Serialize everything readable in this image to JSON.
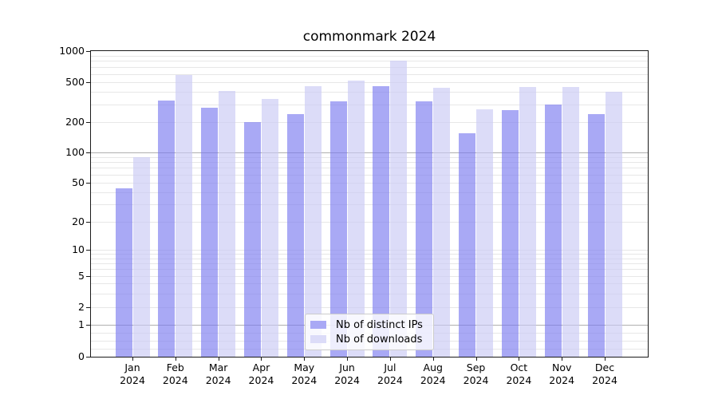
{
  "title": "commonmark 2024",
  "chart_data": {
    "type": "bar",
    "title": "commonmark 2024",
    "categories": [
      "Jan",
      "Feb",
      "Mar",
      "Apr",
      "May",
      "Jun",
      "Jul",
      "Aug",
      "Sep",
      "Oct",
      "Nov",
      "Dec"
    ],
    "year_label": "2024",
    "series": [
      {
        "name": "Nb of distinct IPs",
        "color": "#a9a9f5",
        "fill_rgba": "rgba(123,123,240,0.65)",
        "values": [
          44,
          330,
          280,
          200,
          240,
          320,
          460,
          320,
          155,
          265,
          300,
          240
        ]
      },
      {
        "name": "Nb of downloads",
        "color": "#dcdcf8",
        "fill_rgba": "rgba(202,202,245,0.65)",
        "values": [
          90,
          590,
          410,
          340,
          460,
          520,
          800,
          440,
          270,
          450,
          450,
          400
        ]
      }
    ],
    "yscale": "symlog",
    "ylim": [
      0,
      1000
    ],
    "ytick_labels": [
      "1000",
      "500",
      "200",
      "100",
      "50",
      "20",
      "10",
      "5",
      "2",
      "1",
      "0"
    ],
    "yticks": [
      1000,
      500,
      200,
      100,
      50,
      20,
      10,
      5,
      2,
      1,
      0
    ],
    "grid": true,
    "legend_position": "lower center",
    "grid_minor_color": "#e7e7e7",
    "grid_emphasis_color": "#b0b0b0"
  }
}
